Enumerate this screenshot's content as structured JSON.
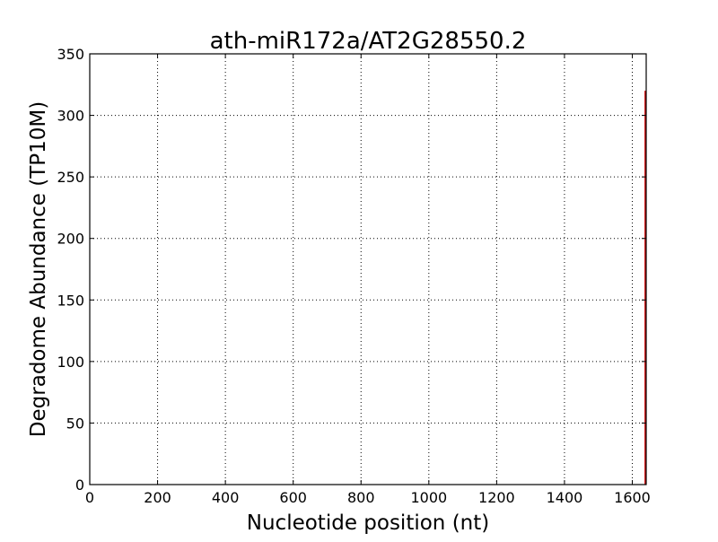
{
  "chart_data": {
    "type": "line",
    "title": "ath-miR172a/AT2G28550.2",
    "xlabel": "Nucleotide position (nt)",
    "ylabel": "Degradome Abundance (TP10M)",
    "xlim": [
      0,
      1641
    ],
    "ylim": [
      0,
      350
    ],
    "xticks": [
      0,
      200,
      400,
      600,
      800,
      1000,
      1200,
      1400,
      1600
    ],
    "yticks": [
      0,
      50,
      100,
      150,
      200,
      250,
      300,
      350
    ],
    "grid": true,
    "series": [
      {
        "color": "#cc0000",
        "x": [
          1638,
          1638
        ],
        "y": [
          0,
          320
        ]
      }
    ]
  }
}
